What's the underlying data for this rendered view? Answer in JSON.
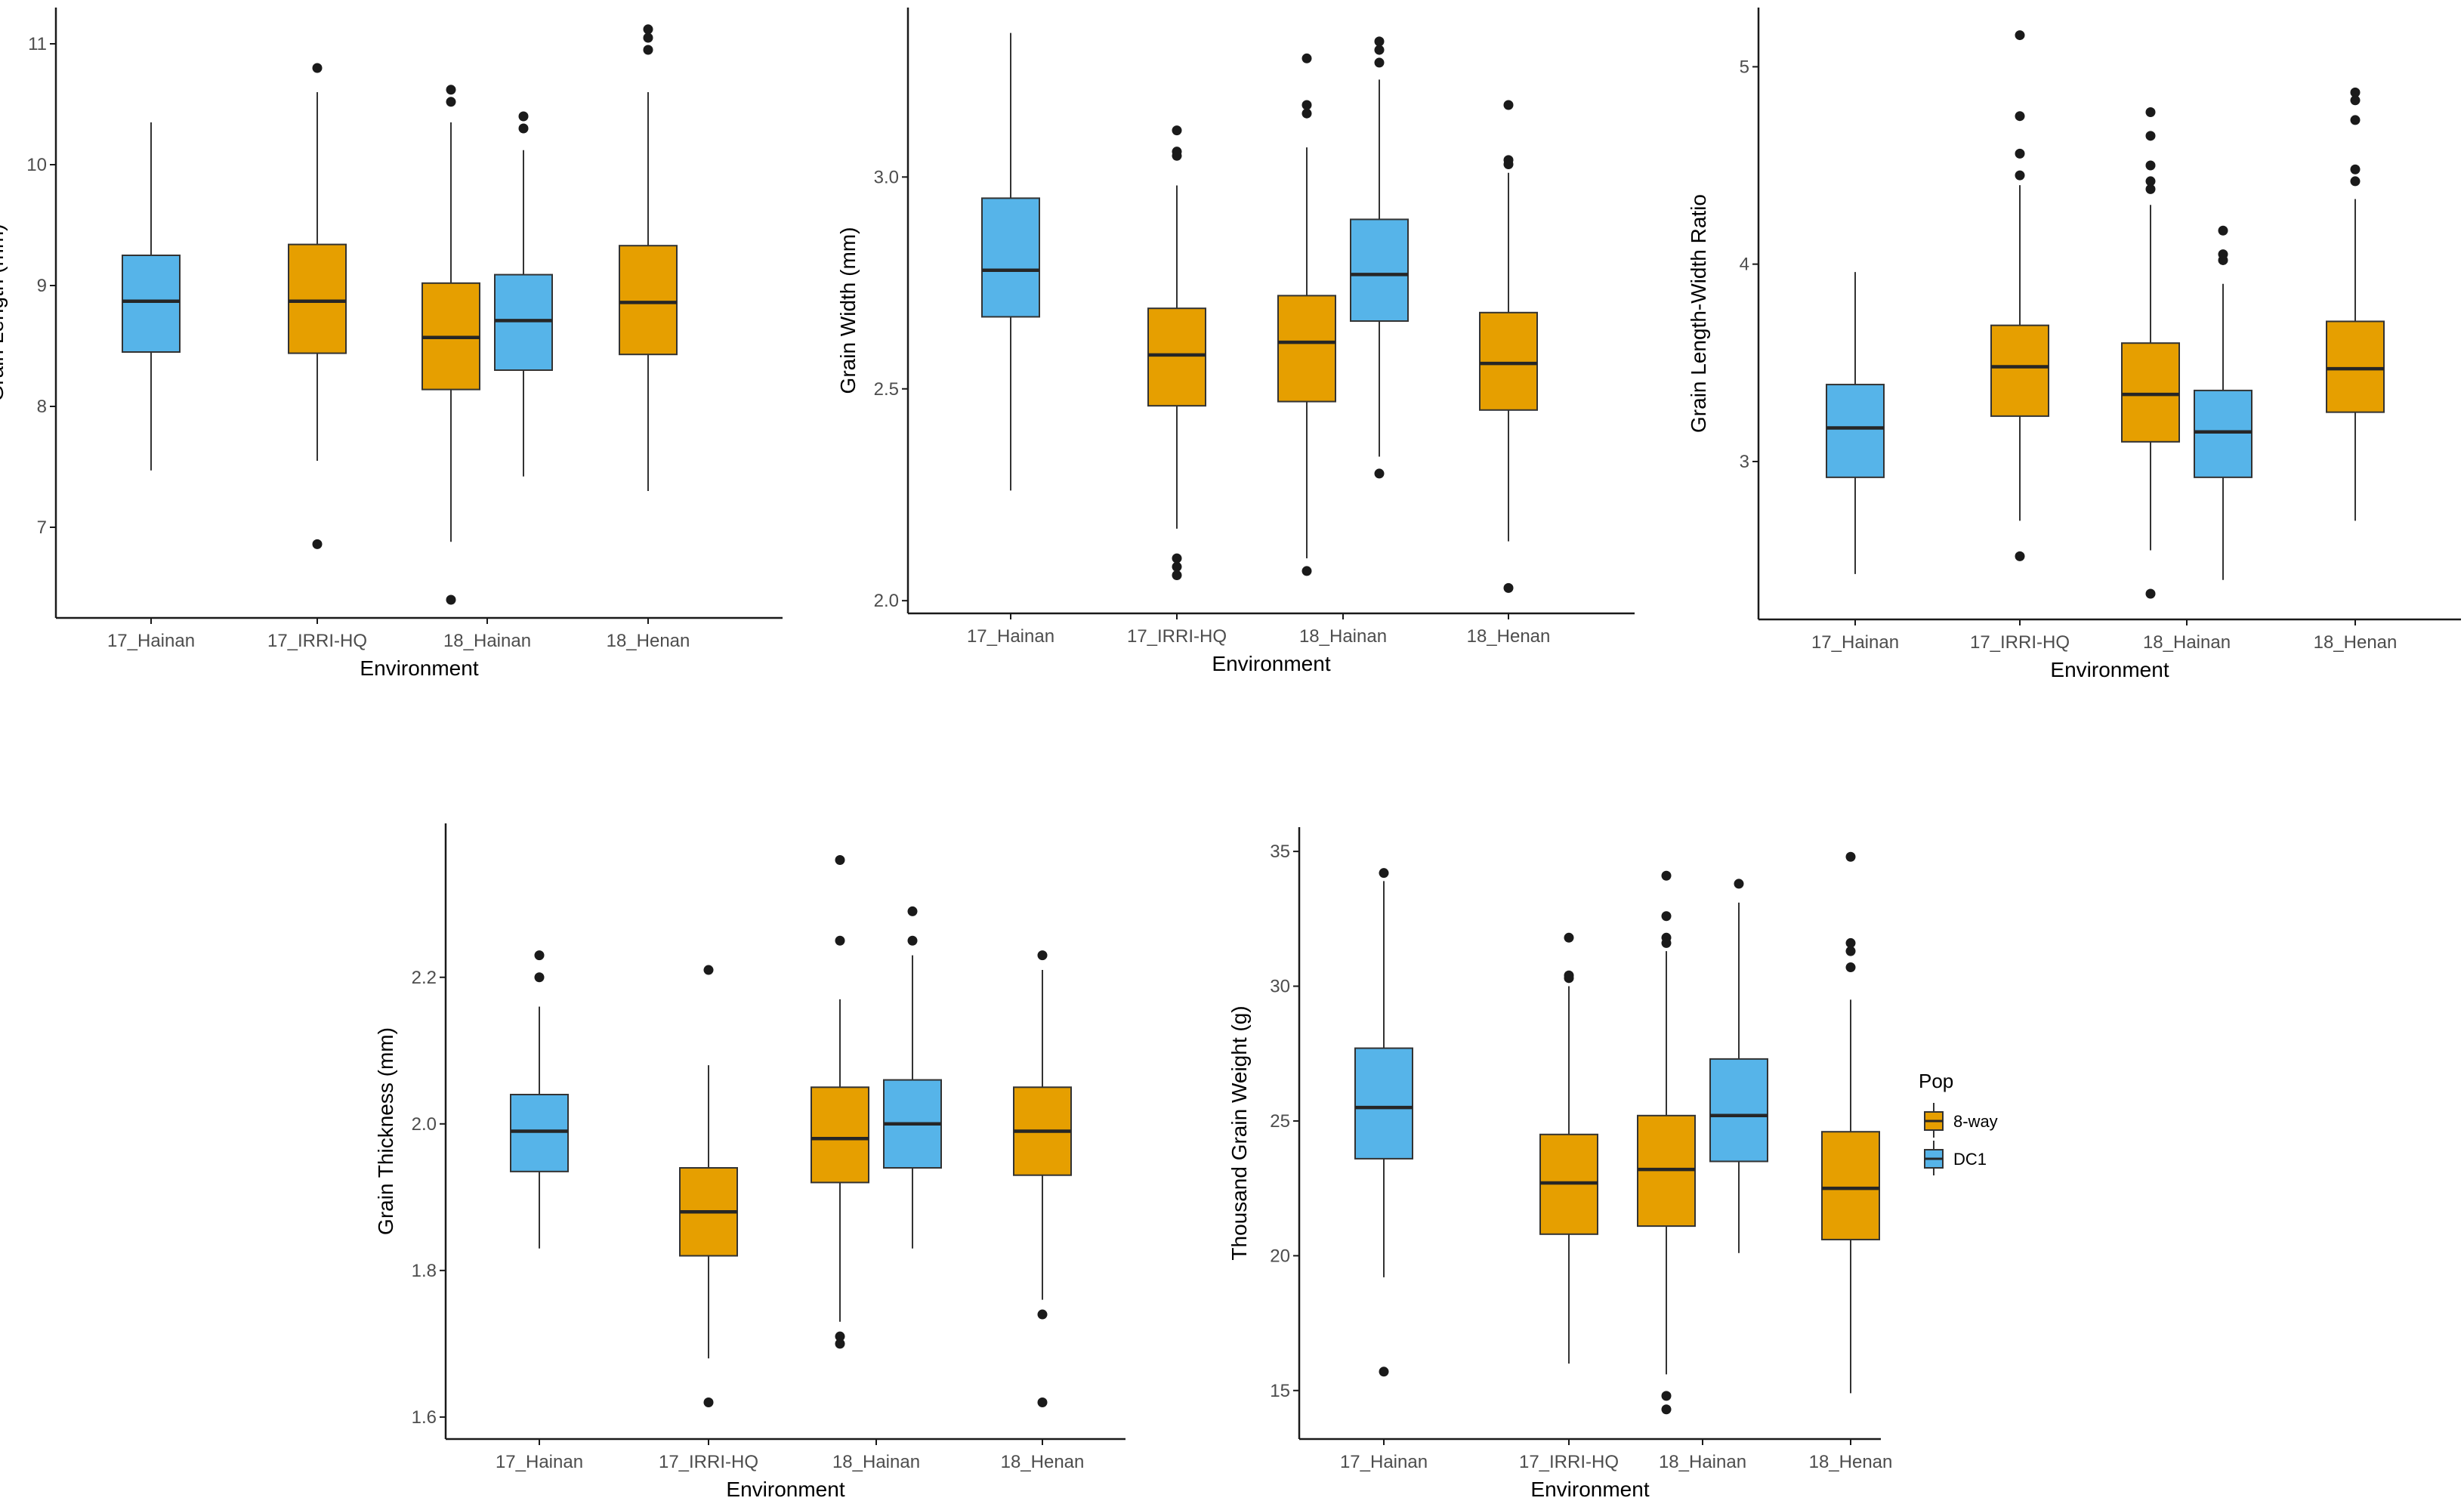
{
  "colors": {
    "8-way": "#E69F00",
    "DC1": "#56B4E9",
    "median": "#262626",
    "whisker": "#333333",
    "outlier": "#1a1a1a",
    "axis": "#1a1a1a"
  },
  "legend": {
    "title": "Pop",
    "entries": [
      {
        "key": "8-way",
        "label": "8-way"
      },
      {
        "key": "DC1",
        "label": "DC1"
      }
    ]
  },
  "chart_data": [
    {
      "type": "boxplot",
      "xlabel": "Environment",
      "ylabel": "Grain Length (mm)",
      "categories": [
        "17_Hainan",
        "17_IRRI-HQ",
        "18_Hainan",
        "18_Henan"
      ],
      "ylim": [
        6.25,
        11.3
      ],
      "yticks": [
        7,
        8,
        9,
        10,
        11
      ],
      "boxes": [
        {
          "category": "17_Hainan",
          "pop": "DC1",
          "whisker_low": 7.47,
          "q1": 8.45,
          "median": 8.87,
          "q3": 9.25,
          "whisker_high": 10.35,
          "outliers": []
        },
        {
          "category": "17_IRRI-HQ",
          "pop": "8-way",
          "whisker_low": 7.55,
          "q1": 8.44,
          "median": 8.87,
          "q3": 9.34,
          "whisker_high": 10.6,
          "outliers": [
            6.86,
            10.8
          ]
        },
        {
          "category": "18_Hainan",
          "pop": "8-way",
          "whisker_low": 6.88,
          "q1": 8.14,
          "median": 8.57,
          "q3": 9.02,
          "whisker_high": 10.35,
          "outliers": [
            6.4,
            10.52,
            10.62
          ]
        },
        {
          "category": "18_Hainan",
          "pop": "DC1",
          "whisker_low": 7.42,
          "q1": 8.3,
          "median": 8.71,
          "q3": 9.09,
          "whisker_high": 10.12,
          "outliers": [
            10.3,
            10.4
          ]
        },
        {
          "category": "18_Henan",
          "pop": "8-way",
          "whisker_low": 7.3,
          "q1": 8.43,
          "median": 8.86,
          "q3": 9.33,
          "whisker_high": 10.6,
          "outliers": [
            10.95,
            11.05,
            11.12
          ]
        }
      ]
    },
    {
      "type": "boxplot",
      "xlabel": "Environment",
      "ylabel": "Grain Width (mm)",
      "categories": [
        "17_Hainan",
        "17_IRRI-HQ",
        "18_Hainan",
        "18_Henan"
      ],
      "ylim": [
        1.97,
        3.4
      ],
      "yticks": [
        2.0,
        2.5,
        3.0
      ],
      "boxes": [
        {
          "category": "17_Hainan",
          "pop": "DC1",
          "whisker_low": 2.26,
          "q1": 2.67,
          "median": 2.78,
          "q3": 2.95,
          "whisker_high": 3.34,
          "outliers": []
        },
        {
          "category": "17_IRRI-HQ",
          "pop": "8-way",
          "whisker_low": 2.17,
          "q1": 2.46,
          "median": 2.58,
          "q3": 2.69,
          "whisker_high": 2.98,
          "outliers": [
            2.06,
            2.08,
            2.1,
            3.05,
            3.06,
            3.11
          ]
        },
        {
          "category": "18_Hainan",
          "pop": "8-way",
          "whisker_low": 2.1,
          "q1": 2.47,
          "median": 2.61,
          "q3": 2.72,
          "whisker_high": 3.07,
          "outliers": [
            2.07,
            3.15,
            3.17,
            3.28
          ]
        },
        {
          "category": "18_Hainan",
          "pop": "DC1",
          "whisker_low": 2.34,
          "q1": 2.66,
          "median": 2.77,
          "q3": 2.9,
          "whisker_high": 3.23,
          "outliers": [
            2.3,
            3.27,
            3.3,
            3.32
          ]
        },
        {
          "category": "18_Henan",
          "pop": "8-way",
          "whisker_low": 2.14,
          "q1": 2.45,
          "median": 2.56,
          "q3": 2.68,
          "whisker_high": 3.01,
          "outliers": [
            2.03,
            3.03,
            3.04,
            3.17
          ]
        }
      ]
    },
    {
      "type": "boxplot",
      "xlabel": "Environment",
      "ylabel": "Grain Length-Width Ratio",
      "categories": [
        "17_Hainan",
        "17_IRRI-HQ",
        "18_Hainan",
        "18_Henan"
      ],
      "ylim": [
        2.2,
        5.3
      ],
      "yticks": [
        3,
        4,
        5
      ],
      "boxes": [
        {
          "category": "17_Hainan",
          "pop": "DC1",
          "whisker_low": 2.43,
          "q1": 2.92,
          "median": 3.17,
          "q3": 3.39,
          "whisker_high": 3.96,
          "outliers": []
        },
        {
          "category": "17_IRRI-HQ",
          "pop": "8-way",
          "whisker_low": 2.7,
          "q1": 3.23,
          "median": 3.48,
          "q3": 3.69,
          "whisker_high": 4.4,
          "outliers": [
            2.52,
            4.45,
            4.56,
            4.75,
            5.16
          ]
        },
        {
          "category": "18_Hainan",
          "pop": "8-way",
          "whisker_low": 2.55,
          "q1": 3.1,
          "median": 3.34,
          "q3": 3.6,
          "whisker_high": 4.3,
          "outliers": [
            2.33,
            4.38,
            4.42,
            4.5,
            4.65,
            4.77
          ]
        },
        {
          "category": "18_Hainan",
          "pop": "DC1",
          "whisker_low": 2.4,
          "q1": 2.92,
          "median": 3.15,
          "q3": 3.36,
          "whisker_high": 3.9,
          "outliers": [
            4.02,
            4.05,
            4.17
          ]
        },
        {
          "category": "18_Henan",
          "pop": "8-way",
          "whisker_low": 2.7,
          "q1": 3.25,
          "median": 3.47,
          "q3": 3.71,
          "whisker_high": 4.33,
          "outliers": [
            4.42,
            4.48,
            4.73,
            4.83,
            4.87
          ]
        }
      ]
    },
    {
      "type": "boxplot",
      "xlabel": "Environment",
      "ylabel": "Grain Thickness (mm)",
      "categories": [
        "17_Hainan",
        "17_IRRI-HQ",
        "18_Hainan",
        "18_Henan"
      ],
      "ylim": [
        1.57,
        2.41
      ],
      "yticks": [
        1.6,
        1.8,
        2.0,
        2.2
      ],
      "boxes": [
        {
          "category": "17_Hainan",
          "pop": "DC1",
          "whisker_low": 1.83,
          "q1": 1.935,
          "median": 1.99,
          "q3": 2.04,
          "whisker_high": 2.16,
          "outliers": [
            2.2,
            2.23
          ]
        },
        {
          "category": "17_IRRI-HQ",
          "pop": "8-way",
          "whisker_low": 1.68,
          "q1": 1.82,
          "median": 1.88,
          "q3": 1.94,
          "whisker_high": 2.08,
          "outliers": [
            1.62,
            2.21
          ]
        },
        {
          "category": "18_Hainan",
          "pop": "8-way",
          "whisker_low": 1.73,
          "q1": 1.92,
          "median": 1.98,
          "q3": 2.05,
          "whisker_high": 2.17,
          "outliers": [
            1.7,
            1.71,
            2.25,
            2.36
          ]
        },
        {
          "category": "18_Hainan",
          "pop": "DC1",
          "whisker_low": 1.83,
          "q1": 1.94,
          "median": 2.0,
          "q3": 2.06,
          "whisker_high": 2.23,
          "outliers": [
            2.25,
            2.29
          ]
        },
        {
          "category": "18_Henan",
          "pop": "8-way",
          "whisker_low": 1.76,
          "q1": 1.93,
          "median": 1.99,
          "q3": 2.05,
          "whisker_high": 2.21,
          "outliers": [
            1.62,
            1.74,
            2.23
          ]
        }
      ]
    },
    {
      "type": "boxplot",
      "xlabel": "Environment",
      "ylabel": "Thousand Grain Weight (g)",
      "categories": [
        "17_Hainan",
        "17_IRRI-HQ",
        "18_Hainan",
        "18_Henan"
      ],
      "ylim": [
        13.2,
        35.9
      ],
      "yticks": [
        15,
        20,
        25,
        30,
        35
      ],
      "boxes": [
        {
          "category": "17_Hainan",
          "pop": "DC1",
          "whisker_low": 19.2,
          "q1": 23.6,
          "median": 25.5,
          "q3": 27.7,
          "whisker_high": 33.9,
          "outliers": [
            15.7,
            34.2
          ]
        },
        {
          "category": "17_IRRI-HQ",
          "pop": "8-way",
          "whisker_low": 16.0,
          "q1": 20.8,
          "median": 22.7,
          "q3": 24.5,
          "whisker_high": 30.0,
          "outliers": [
            30.3,
            30.4,
            31.8
          ]
        },
        {
          "category": "18_Hainan",
          "pop": "8-way",
          "whisker_low": 15.6,
          "q1": 21.1,
          "median": 23.2,
          "q3": 25.2,
          "whisker_high": 31.3,
          "outliers": [
            14.3,
            14.8,
            31.6,
            31.8,
            32.6,
            34.1
          ]
        },
        {
          "category": "18_Hainan",
          "pop": "DC1",
          "whisker_low": 20.1,
          "q1": 23.5,
          "median": 25.2,
          "q3": 27.3,
          "whisker_high": 33.1,
          "outliers": [
            33.8
          ]
        },
        {
          "category": "18_Henan",
          "pop": "8-way",
          "whisker_low": 14.9,
          "q1": 20.6,
          "median": 22.5,
          "q3": 24.6,
          "whisker_high": 29.5,
          "outliers": [
            30.7,
            31.3,
            31.6,
            34.8
          ]
        }
      ]
    }
  ]
}
